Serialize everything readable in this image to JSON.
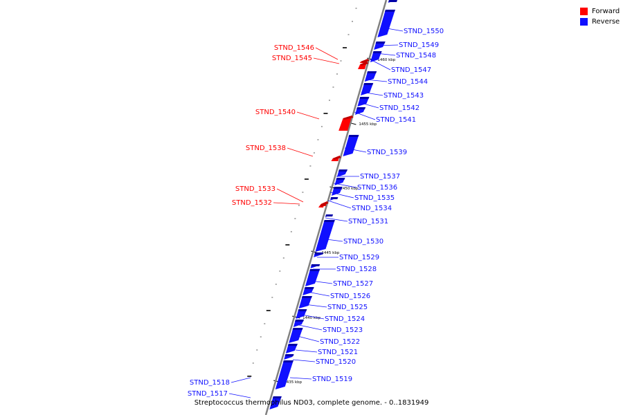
{
  "colors": {
    "forward": "#ff0000",
    "forward_dark": "#c00000",
    "reverse": "#1010ff",
    "reverse_dark": "#0000a8",
    "axis": "#808080"
  },
  "legend": {
    "forward_label": "Forward",
    "reverse_label": "Reverse"
  },
  "caption": "Streptococcus thermophilus ND03, complete genome. - 0..1831949",
  "axis_ticks": [
    "1460 kbp",
    "1455 kbp",
    "1450 kbp",
    "1445 kbp",
    "1440 kbp",
    "1435 kbp"
  ],
  "forward_genes": [
    "STND_1546",
    "STND_1545",
    "STND_1540",
    "STND_1538",
    "STND_1533",
    "STND_1532",
    "STND_1518",
    "STND_1517"
  ],
  "reverse_genes": [
    "STND_1550",
    "STND_1549",
    "STND_1548",
    "STND_1547",
    "STND_1544",
    "STND_1543",
    "STND_1542",
    "STND_1541",
    "STND_1539",
    "STND_1537",
    "STND_1536",
    "STND_1535",
    "STND_1534",
    "STND_1531",
    "STND_1530",
    "STND_1529",
    "STND_1528",
    "STND_1527",
    "STND_1526",
    "STND_1525",
    "STND_1524",
    "STND_1523",
    "STND_1522",
    "STND_1521",
    "STND_1520",
    "STND_1519"
  ]
}
